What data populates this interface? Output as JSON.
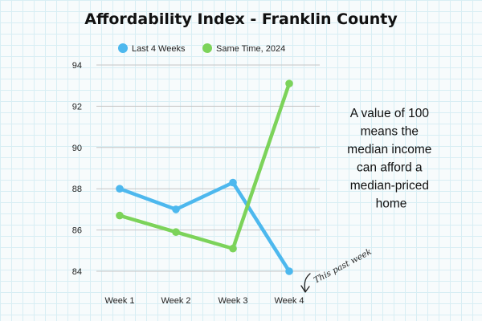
{
  "chart_data": {
    "type": "line",
    "title": "Affordability Index - Franklin County",
    "categories": [
      "Week 1",
      "Week 2",
      "Week 3",
      "Week 4"
    ],
    "series": [
      {
        "name": "Last 4 Weeks",
        "color": "#4db8ee",
        "values": [
          88.0,
          87.0,
          88.3,
          84.0
        ]
      },
      {
        "name": "Same Time, 2024",
        "color": "#7cd35a",
        "values": [
          86.7,
          85.9,
          85.1,
          93.1
        ]
      }
    ],
    "ylim": [
      83.5,
      94
    ],
    "yticks": [
      84,
      86,
      88,
      90,
      92,
      94
    ],
    "grid": true,
    "legend_position": "top",
    "annotation_lines": [
      "A value of 100",
      "means the",
      "median income",
      "can afford a",
      "median-priced",
      "home"
    ],
    "callout": "This past week"
  }
}
